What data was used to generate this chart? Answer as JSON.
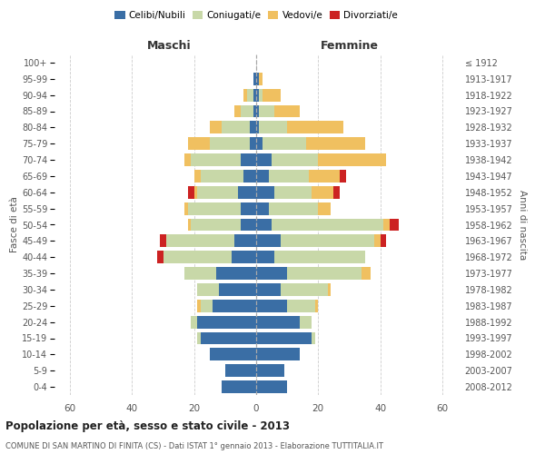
{
  "age_groups": [
    "0-4",
    "5-9",
    "10-14",
    "15-19",
    "20-24",
    "25-29",
    "30-34",
    "35-39",
    "40-44",
    "45-49",
    "50-54",
    "55-59",
    "60-64",
    "65-69",
    "70-74",
    "75-79",
    "80-84",
    "85-89",
    "90-94",
    "95-99",
    "100+"
  ],
  "birth_years": [
    "2008-2012",
    "2003-2007",
    "1998-2002",
    "1993-1997",
    "1988-1992",
    "1983-1987",
    "1978-1982",
    "1973-1977",
    "1968-1972",
    "1963-1967",
    "1958-1962",
    "1953-1957",
    "1948-1952",
    "1943-1947",
    "1938-1942",
    "1933-1937",
    "1928-1932",
    "1923-1927",
    "1918-1922",
    "1913-1917",
    "≤ 1912"
  ],
  "maschi": {
    "celibi": [
      11,
      10,
      15,
      18,
      19,
      14,
      12,
      13,
      8,
      7,
      5,
      5,
      6,
      4,
      5,
      2,
      2,
      1,
      1,
      1,
      0
    ],
    "coniugati": [
      0,
      0,
      0,
      1,
      2,
      4,
      7,
      10,
      22,
      22,
      16,
      17,
      13,
      14,
      16,
      13,
      9,
      4,
      2,
      0,
      0
    ],
    "vedovi": [
      0,
      0,
      0,
      0,
      0,
      1,
      0,
      0,
      0,
      0,
      1,
      1,
      1,
      2,
      2,
      7,
      4,
      2,
      1,
      0,
      0
    ],
    "divorziati": [
      0,
      0,
      0,
      0,
      0,
      0,
      0,
      0,
      2,
      2,
      0,
      0,
      2,
      0,
      0,
      0,
      0,
      0,
      0,
      0,
      0
    ]
  },
  "femmine": {
    "nubili": [
      10,
      9,
      14,
      18,
      14,
      10,
      8,
      10,
      6,
      8,
      5,
      4,
      6,
      4,
      5,
      2,
      1,
      1,
      1,
      1,
      0
    ],
    "coniugate": [
      0,
      0,
      0,
      1,
      4,
      9,
      15,
      24,
      29,
      30,
      36,
      16,
      12,
      13,
      15,
      14,
      9,
      5,
      1,
      0,
      0
    ],
    "vedove": [
      0,
      0,
      0,
      0,
      0,
      1,
      1,
      3,
      0,
      2,
      2,
      4,
      7,
      10,
      22,
      19,
      18,
      8,
      6,
      1,
      0
    ],
    "divorziate": [
      0,
      0,
      0,
      0,
      0,
      0,
      0,
      0,
      0,
      2,
      3,
      0,
      2,
      2,
      0,
      0,
      0,
      0,
      0,
      0,
      0
    ]
  },
  "colors": {
    "celibi": "#3a6ea5",
    "coniugati": "#c8d8a8",
    "vedovi": "#f0c060",
    "divorziati": "#cc2222"
  },
  "title": "Popolazione per età, sesso e stato civile - 2013",
  "subtitle": "COMUNE DI SAN MARTINO DI FINITA (CS) - Dati ISTAT 1° gennaio 2013 - Elaborazione TUTTITALIA.IT",
  "xlabel_left": "Maschi",
  "xlabel_right": "Femmine",
  "ylabel_left": "Fasce di età",
  "ylabel_right": "Anni di nascita",
  "xlim": 65,
  "bg_color": "#ffffff",
  "grid_color": "#cccccc",
  "legend_labels": [
    "Celibi/Nubili",
    "Coniugati/e",
    "Vedovi/e",
    "Divorziati/e"
  ]
}
